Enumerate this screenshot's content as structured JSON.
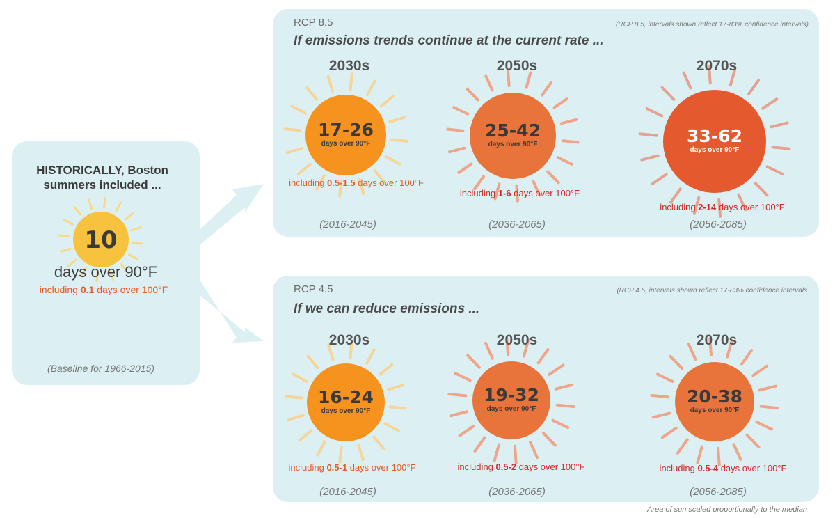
{
  "historical": {
    "heading": "HISTORICALLY, Boston summers included ...",
    "value": "10",
    "days_label": "days over 90°F",
    "incl_prefix": "including ",
    "incl_value": "0.1",
    "incl_suffix": " days over 100°F",
    "baseline": "(Baseline for 1966-2015)"
  },
  "rcp85": {
    "label": "RCP 8.5",
    "note": "(RCP 8.5, intervals shown reflect 17-83% confidence intervals)",
    "scenario": "If emissions trends continue at the current rate ...",
    "decades": [
      {
        "decade": "2030s",
        "range": "17-26",
        "unit": "days over 90°F",
        "incl_prefix": "including ",
        "incl_value": "0.5-1.5",
        "incl_suffix": " days over 100°F",
        "period": "(2016-2045)"
      },
      {
        "decade": "2050s",
        "range": "25-42",
        "unit": "days over 90°F",
        "incl_prefix": "including ",
        "incl_value": "1-6",
        "incl_suffix": " days over 100°F",
        "period": "(2036-2065)"
      },
      {
        "decade": "2070s",
        "range": "33-62",
        "unit": "days over 90°F",
        "incl_prefix": "including ",
        "incl_value": "2-14",
        "incl_suffix": " days over 100°F",
        "period": "(2056-2085)"
      }
    ]
  },
  "rcp45": {
    "label": "RCP 4.5",
    "note": "(RCP 4.5, intervals shown reflect 17-83% confidence intervals",
    "scenario": "If we can reduce emissions ...",
    "decades": [
      {
        "decade": "2030s",
        "range": "16-24",
        "unit": "days over 90°F",
        "incl_prefix": "including ",
        "incl_value": "0.5-1",
        "incl_suffix": " days over 100°F",
        "period": "(2016-2045)"
      },
      {
        "decade": "2050s",
        "range": "19-32",
        "unit": "days over 90°F",
        "incl_prefix": "including ",
        "incl_value": "0.5-2",
        "incl_suffix": " days over 100°F",
        "period": "(2036-2065)"
      },
      {
        "decade": "2070s",
        "range": "20-38",
        "unit": "days over 90°F",
        "incl_prefix": "including ",
        "incl_value": "0.5-4",
        "incl_suffix": " days over 100°F",
        "period": "(2056-2085)"
      }
    ]
  },
  "footnote": "Area of sun scaled proportionally to the median",
  "colors": {
    "panel_bg": "#dcf0f3",
    "arrow": "#dcf0f3",
    "sun_yellow": "#f7c23d",
    "sun_orange": "#f6921e",
    "sun_orange_dark": "#e8743b",
    "sun_red": "#e5592e",
    "incl_orange": "#e55a25",
    "incl_red": "#d6262b"
  }
}
